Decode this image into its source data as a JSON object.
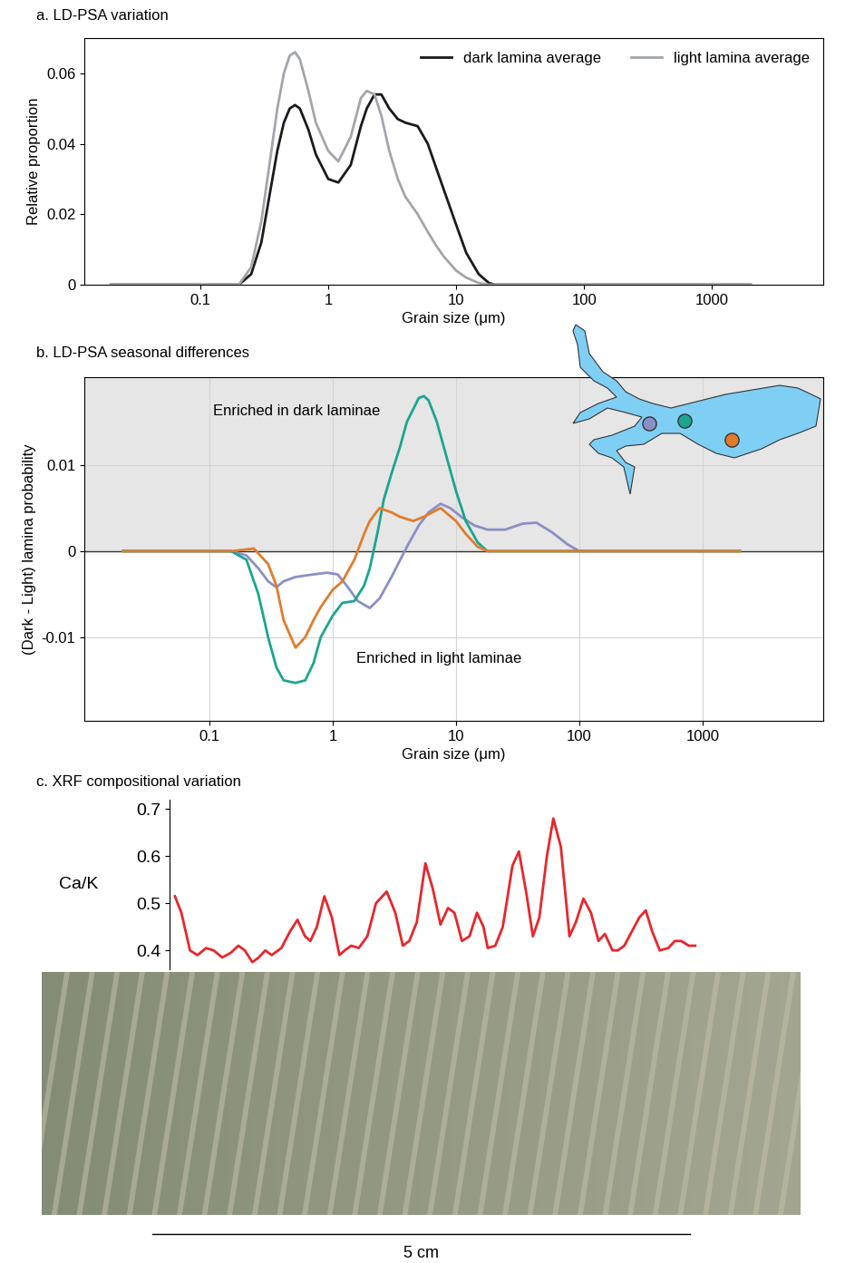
{
  "chart_data": [
    {
      "type": "line",
      "title": "a. LD-PSA variation",
      "xlabel": "Grain size (μm)",
      "ylabel": "Relative proportion",
      "log": "x",
      "grid": false,
      "legend": "upper right",
      "xlim": [
        0.0124,
        7400
      ],
      "ylim": [
        0,
        0.07
      ],
      "xticks": [
        0.1,
        1,
        10,
        100,
        1000
      ],
      "yticks": [
        0,
        0.02,
        0.04,
        0.06
      ],
      "series": [
        {
          "name": "dark lamina average",
          "color": "#1a1a1a",
          "x": [
            0.02,
            0.1,
            0.2,
            0.25,
            0.3,
            0.35,
            0.4,
            0.45,
            0.5,
            0.55,
            0.6,
            0.7,
            0.8,
            1.0,
            1.2,
            1.5,
            1.8,
            2.0,
            2.3,
            2.6,
            3,
            3.5,
            4,
            5,
            6,
            7,
            8,
            10,
            12,
            15,
            18,
            20,
            30,
            100,
            2000
          ],
          "values": [
            0,
            0,
            0,
            0.003,
            0.012,
            0.026,
            0.038,
            0.046,
            0.05,
            0.051,
            0.05,
            0.044,
            0.037,
            0.03,
            0.029,
            0.034,
            0.045,
            0.05,
            0.054,
            0.054,
            0.05,
            0.047,
            0.046,
            0.045,
            0.04,
            0.033,
            0.027,
            0.017,
            0.009,
            0.003,
            0.0005,
            0,
            0,
            0,
            0
          ]
        },
        {
          "name": "light lamina average",
          "color": "#a2a6aa",
          "x": [
            0.02,
            0.1,
            0.2,
            0.25,
            0.3,
            0.35,
            0.4,
            0.45,
            0.5,
            0.55,
            0.6,
            0.7,
            0.8,
            1.0,
            1.2,
            1.5,
            1.8,
            2.0,
            2.3,
            2.6,
            3,
            3.5,
            4,
            5,
            6,
            7,
            8,
            10,
            12,
            15,
            18,
            20,
            30,
            100,
            2000
          ],
          "values": [
            0,
            0,
            0,
            0.005,
            0.018,
            0.035,
            0.05,
            0.06,
            0.065,
            0.066,
            0.064,
            0.055,
            0.046,
            0.038,
            0.035,
            0.042,
            0.053,
            0.055,
            0.054,
            0.048,
            0.038,
            0.03,
            0.025,
            0.02,
            0.015,
            0.011,
            0.008,
            0.004,
            0.002,
            0.0005,
            0,
            0,
            0,
            0,
            0
          ]
        }
      ]
    },
    {
      "type": "line",
      "title": "b. LD-PSA seasonal differences",
      "xlabel": "Grain size (μm)",
      "ylabel": "(Dark - Light) lamina probability",
      "log": "x",
      "grid": true,
      "xlim": [
        0.0097,
        9500
      ],
      "ylim": [
        -0.0197,
        0.0202
      ],
      "xticks": [
        0.1,
        1,
        10,
        100,
        1000
      ],
      "yticks": [
        -0.01,
        0,
        0.01
      ],
      "annotations": [
        {
          "text": "Enriched in dark laminae",
          "x": 0.107,
          "y": 0.0163
        },
        {
          "text": "Enriched in light laminae",
          "x": 1.55,
          "y": -0.0125
        }
      ],
      "series": [
        {
          "color": "#8b8fc6",
          "x": [
            0.02,
            0.15,
            0.2,
            0.25,
            0.3,
            0.35,
            0.4,
            0.5,
            0.7,
            0.9,
            1.1,
            1.3,
            1.6,
            2.0,
            2.4,
            3,
            4,
            5,
            6,
            7.5,
            9,
            11,
            14,
            18,
            25,
            35,
            45,
            60,
            80,
            100,
            2000
          ],
          "values": [
            0,
            0,
            -0.0005,
            -0.002,
            -0.0035,
            -0.0042,
            -0.0035,
            -0.003,
            -0.0027,
            -0.0025,
            -0.0027,
            -0.004,
            -0.0058,
            -0.0066,
            -0.0055,
            -0.003,
            0.0005,
            0.003,
            0.0045,
            0.0055,
            0.005,
            0.004,
            0.003,
            0.0025,
            0.0025,
            0.0032,
            0.0033,
            0.0022,
            0.0008,
            0,
            0
          ]
        },
        {
          "color": "#1aa68e",
          "x": [
            0.02,
            0.15,
            0.2,
            0.25,
            0.3,
            0.35,
            0.4,
            0.5,
            0.6,
            0.7,
            0.8,
            1.0,
            1.2,
            1.5,
            1.8,
            2.0,
            2.3,
            2.6,
            3,
            3.5,
            4,
            5,
            5.5,
            6,
            7,
            8,
            10,
            12,
            15,
            18,
            100,
            2000
          ],
          "values": [
            0,
            0,
            -0.001,
            -0.005,
            -0.01,
            -0.0135,
            -0.015,
            -0.0153,
            -0.015,
            -0.013,
            -0.01,
            -0.0075,
            -0.006,
            -0.0058,
            -0.004,
            -0.002,
            0.002,
            0.006,
            0.009,
            0.012,
            0.015,
            0.0178,
            0.018,
            0.0175,
            0.015,
            0.012,
            0.007,
            0.0035,
            0.001,
            0,
            0,
            0
          ]
        },
        {
          "color": "#e07c2a",
          "x": [
            0.02,
            0.15,
            0.2,
            0.23,
            0.3,
            0.35,
            0.4,
            0.5,
            0.6,
            0.7,
            0.8,
            1.0,
            1.2,
            1.5,
            1.8,
            2.0,
            2.4,
            3,
            3.5,
            4.5,
            5.5,
            7.5,
            10,
            12,
            15,
            18,
            100,
            2000
          ],
          "values": [
            0,
            0,
            0.0002,
            0.0003,
            -0.0015,
            -0.004,
            -0.008,
            -0.0112,
            -0.01,
            -0.008,
            -0.0065,
            -0.0045,
            -0.0035,
            -0.001,
            0.002,
            0.0035,
            0.005,
            0.0045,
            0.004,
            0.0035,
            0.004,
            0.005,
            0.0035,
            0.002,
            0.0005,
            0,
            0,
            0
          ]
        }
      ]
    },
    {
      "type": "line",
      "title": "c. XRF compositional variation",
      "ylabel": "Ca/K",
      "tick_labels": "y",
      "grid": false,
      "xlim": [
        1.19,
        7.06
      ],
      "ylim": [
        0.36,
        0.72
      ],
      "yticks": [
        0.4,
        0.5,
        0.6,
        0.7
      ],
      "scale_bar": {
        "length": 5,
        "label": "5 cm"
      },
      "series": [
        {
          "color": "#e8262b",
          "x": [
            1.24,
            1.3,
            1.38,
            1.45,
            1.53,
            1.6,
            1.68,
            1.76,
            1.83,
            1.89,
            1.96,
            2.02,
            2.08,
            2.14,
            2.23,
            2.31,
            2.38,
            2.45,
            2.5,
            2.56,
            2.63,
            2.7,
            2.77,
            2.82,
            2.88,
            2.95,
            3.03,
            3.11,
            3.21,
            3.29,
            3.36,
            3.42,
            3.49,
            3.57,
            3.64,
            3.71,
            3.78,
            3.84,
            3.91,
            3.98,
            4.05,
            4.11,
            4.15,
            4.22,
            4.29,
            4.38,
            4.44,
            4.51,
            4.57,
            4.63,
            4.7,
            4.76,
            4.83,
            4.91,
            4.97,
            5.04,
            5.11,
            5.18,
            5.24,
            5.31,
            5.36,
            5.42,
            5.49,
            5.56,
            5.62,
            5.68,
            5.75,
            5.83,
            5.89,
            5.95,
            6.02,
            6.08
          ],
          "values": [
            0.515,
            0.48,
            0.4,
            0.39,
            0.405,
            0.4,
            0.385,
            0.395,
            0.41,
            0.4,
            0.375,
            0.385,
            0.4,
            0.39,
            0.405,
            0.44,
            0.465,
            0.43,
            0.42,
            0.45,
            0.515,
            0.47,
            0.39,
            0.4,
            0.41,
            0.405,
            0.43,
            0.5,
            0.525,
            0.48,
            0.41,
            0.42,
            0.46,
            0.585,
            0.53,
            0.455,
            0.49,
            0.48,
            0.42,
            0.43,
            0.48,
            0.45,
            0.405,
            0.41,
            0.45,
            0.58,
            0.61,
            0.52,
            0.43,
            0.47,
            0.6,
            0.68,
            0.62,
            0.43,
            0.46,
            0.51,
            0.48,
            0.42,
            0.435,
            0.4,
            0.4,
            0.41,
            0.44,
            0.47,
            0.485,
            0.44,
            0.4,
            0.405,
            0.42,
            0.42,
            0.41,
            0.41
          ]
        }
      ]
    }
  ]
}
